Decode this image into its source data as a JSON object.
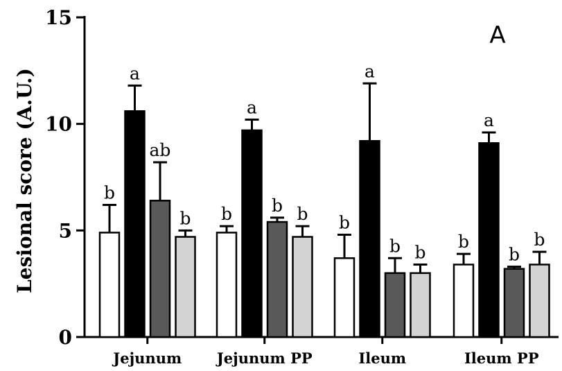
{
  "chart_data": {
    "type": "bar",
    "panel_label": "A",
    "ylabel": "Lesional score (A.U.)",
    "ylim": [
      0,
      15
    ],
    "yticks": [
      0,
      5,
      10,
      15
    ],
    "ytick_labels": [
      "0",
      "5",
      "10",
      "15"
    ],
    "grid": false,
    "categories": [
      "Jejunum",
      "Jejunum PP",
      "Ileum",
      "Ileum PP"
    ],
    "series": [
      {
        "fill": "#ffffff",
        "values": [
          4.9,
          4.9,
          3.7,
          3.4
        ],
        "errors": [
          1.3,
          0.3,
          1.1,
          0.5
        ],
        "labels": [
          "b",
          "b",
          "b",
          "b"
        ]
      },
      {
        "fill": "#000000",
        "values": [
          10.6,
          9.7,
          9.2,
          9.1
        ],
        "errors": [
          1.2,
          0.5,
          2.7,
          0.5
        ],
        "labels": [
          "a",
          "a",
          "a",
          "a"
        ]
      },
      {
        "fill": "#595959",
        "values": [
          6.4,
          5.4,
          3.0,
          3.2
        ],
        "errors": [
          1.8,
          0.2,
          0.7,
          0.1
        ],
        "labels": [
          "ab",
          "b",
          "b",
          "b"
        ]
      },
      {
        "fill": "#d3d3d3",
        "values": [
          4.7,
          4.7,
          3.0,
          3.4
        ],
        "errors": [
          0.3,
          0.5,
          0.4,
          0.6
        ],
        "labels": [
          "b",
          "b",
          "b",
          "b"
        ]
      }
    ]
  }
}
